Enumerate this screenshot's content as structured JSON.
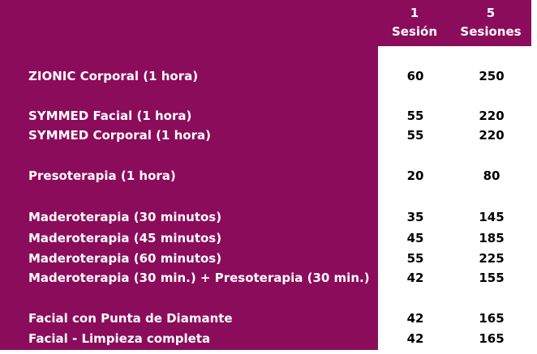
{
  "header": {
    "col1_number": "1",
    "col1_label": "Sesión",
    "col5_number": "5",
    "col5_label": "Sesiones"
  },
  "rows": [
    {
      "label": "ZIONIC Corporal (1 hora)",
      "one": "60",
      "five": "250"
    },
    {
      "label": "SYMMED Facial (1 hora)",
      "one": "55",
      "five": "220"
    },
    {
      "label": "SYMMED Corporal (1 hora)",
      "one": "55",
      "five": "220"
    },
    {
      "label": "Presoterapia (1 hora)",
      "one": "20",
      "five": "80"
    },
    {
      "label": "Maderoterapia (30 minutos)",
      "one": "35",
      "five": "145"
    },
    {
      "label": "Maderoterapia (45 minutos)",
      "one": "45",
      "five": "185"
    },
    {
      "label": "Maderoterapia (60 minutos)",
      "one": "55",
      "five": "225"
    },
    {
      "label": "Maderoterapia (30 min.) + Presoterapia (30 min.)",
      "one": "42",
      "five": "155"
    },
    {
      "label": "Facial con Punta de Diamante",
      "one": "42",
      "five": "165"
    },
    {
      "label": "Facial - Limpieza completa",
      "one": "42",
      "five": "165"
    }
  ],
  "colors": {
    "band": "#8c0c5c",
    "label_text": "#ffffff",
    "value_text": "#000000"
  }
}
